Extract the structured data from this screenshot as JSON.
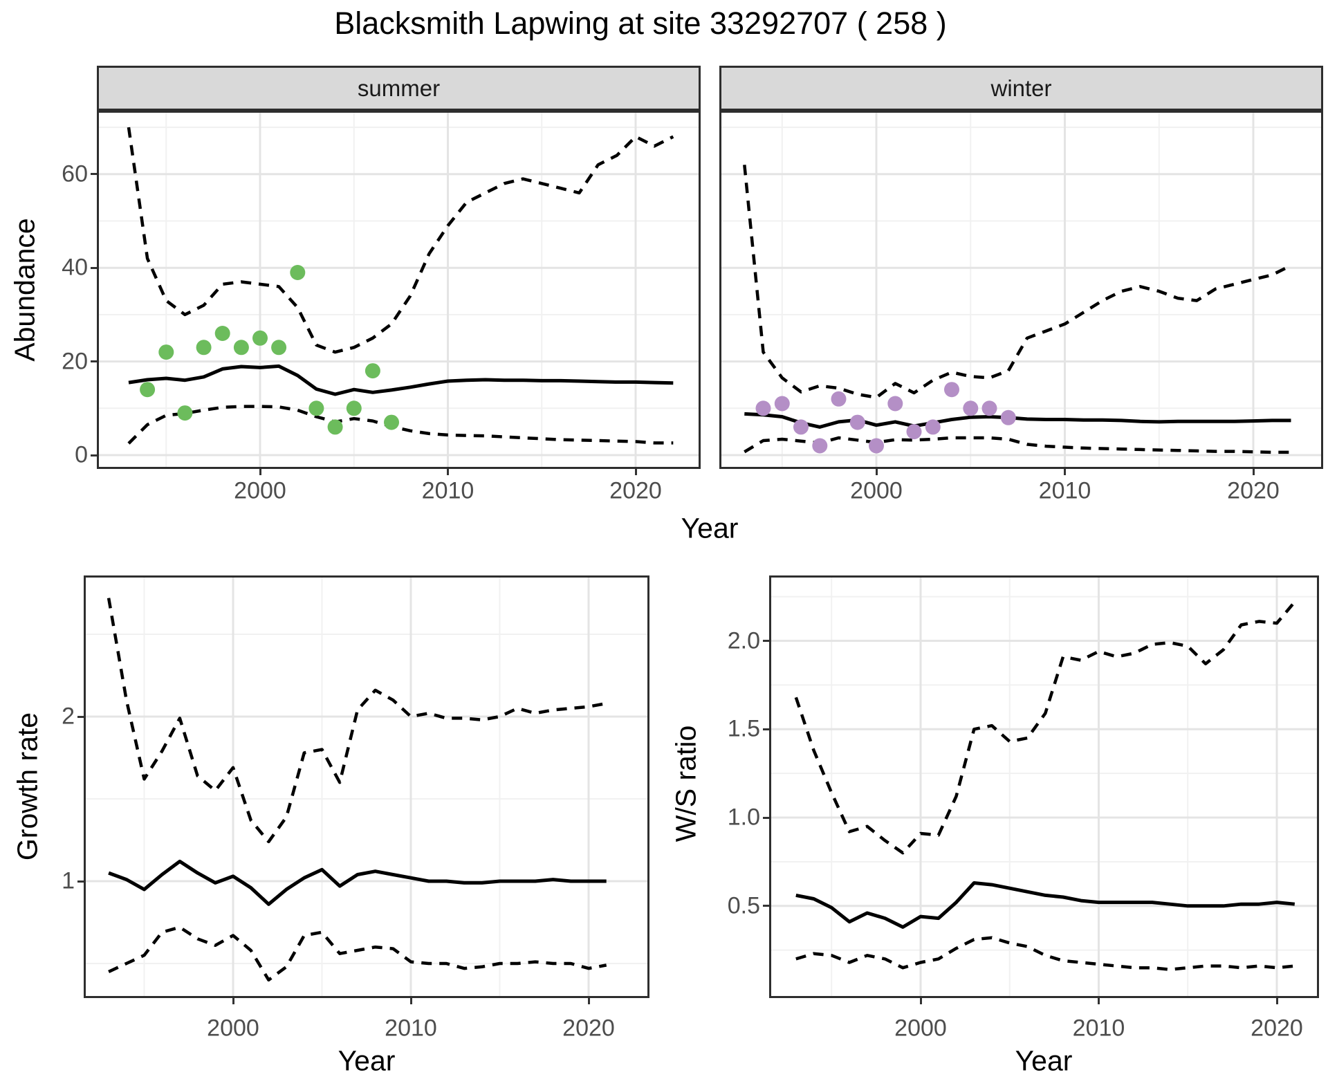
{
  "title": "Blacksmith Lapwing at site 33292707 ( 258 )",
  "facets": {
    "summer_label": "summer",
    "winter_label": "winter"
  },
  "axis_labels": {
    "abundance": "Abundance",
    "top_year": "Year",
    "growth_rate": "Growth rate",
    "growth_year": "Year",
    "ws_ratio": "W/S ratio",
    "ws_year": "Year"
  },
  "colors": {
    "summer_point": "#6cbc5c",
    "winter_point": "#b48fc6",
    "line": "#000000",
    "strip_bg": "#d9d9d9",
    "panel_border": "#2e2e2e",
    "grid_major": "#e4e4e4",
    "grid_minor": "#f1f1f1",
    "tick_text": "#4d4d4d"
  },
  "chart_data": [
    {
      "id": "abundance-summer",
      "type": "line",
      "facet": "summer",
      "xlabel": "Year",
      "ylabel": "Abundance",
      "xlim": [
        1991.4,
        2023.4
      ],
      "ylim": [
        -2.5,
        73
      ],
      "x_ticks": [
        2000,
        2010,
        2020
      ],
      "x_tick_labels": [
        "2000",
        "2010",
        "2020"
      ],
      "x_minor": [
        1995,
        2005,
        2015
      ],
      "y_ticks": [
        0,
        20,
        40,
        60
      ],
      "y_tick_labels": [
        "0",
        "20",
        "40",
        "60"
      ],
      "y_minor": [
        10,
        30,
        50,
        70
      ],
      "grid": true,
      "legend": "none",
      "years": [
        1993,
        1994,
        1995,
        1996,
        1997,
        1998,
        1999,
        2000,
        2001,
        2002,
        2003,
        2004,
        2005,
        2006,
        2007,
        2008,
        2009,
        2010,
        2011,
        2012,
        2013,
        2014,
        2015,
        2016,
        2017,
        2018,
        2019,
        2020,
        2021,
        2022
      ],
      "series": [
        {
          "name": "median",
          "style": "solid",
          "values": [
            15.5,
            16.1,
            16.4,
            16.0,
            16.7,
            18.4,
            18.9,
            18.7,
            19.0,
            17.0,
            14.1,
            13.0,
            14.0,
            13.4,
            13.9,
            14.5,
            15.2,
            15.8,
            16.0,
            16.1,
            16.0,
            16.0,
            15.9,
            15.9,
            15.8,
            15.7,
            15.6,
            15.6,
            15.5,
            15.4
          ]
        },
        {
          "name": "upper-95ci",
          "style": "dashed",
          "values": [
            70,
            42,
            33,
            30,
            32,
            36.5,
            37,
            36.5,
            36,
            31.5,
            23.5,
            22,
            23,
            25,
            28,
            34,
            43,
            49,
            54,
            56,
            58,
            59,
            58,
            57,
            56,
            62,
            64,
            68,
            66,
            68
          ]
        },
        {
          "name": "lower-95ci",
          "style": "dashed",
          "values": [
            2.5,
            6.5,
            8.5,
            8.9,
            9.6,
            10.2,
            10.4,
            10.4,
            10.3,
            9.6,
            8.2,
            7.1,
            7.8,
            7.3,
            6.1,
            5.2,
            4.6,
            4.3,
            4.2,
            4.1,
            3.9,
            3.7,
            3.5,
            3.3,
            3.2,
            3.1,
            3.0,
            2.9,
            2.6,
            2.6
          ]
        }
      ],
      "points": {
        "name": "observed-counts-summer",
        "color_key": "summer_point",
        "x": [
          1994,
          1995,
          1996,
          1997,
          1998,
          1999,
          2000,
          2001,
          2002,
          2003,
          2004,
          2005,
          2006,
          2007
        ],
        "y": [
          14,
          22,
          9,
          23,
          26,
          23,
          25,
          23,
          39,
          10,
          6,
          10,
          18,
          7
        ]
      }
    },
    {
      "id": "abundance-winter",
      "type": "line",
      "facet": "winter",
      "xlabel": "Year",
      "ylabel": "Abundance",
      "xlim": [
        1991.4,
        2023.4
      ],
      "ylim": [
        -2.5,
        73
      ],
      "x_ticks": [
        2000,
        2010,
        2020
      ],
      "x_tick_labels": [
        "2000",
        "2010",
        "2020"
      ],
      "x_minor": [
        1995,
        2005,
        2015
      ],
      "y_ticks": [
        0,
        20,
        40,
        60
      ],
      "y_tick_labels": [],
      "y_minor": [
        10,
        30,
        50,
        70
      ],
      "grid": true,
      "legend": "none",
      "years": [
        1993,
        1994,
        1995,
        1996,
        1997,
        1998,
        1999,
        2000,
        2001,
        2002,
        2003,
        2004,
        2005,
        2006,
        2007,
        2008,
        2009,
        2010,
        2011,
        2012,
        2013,
        2014,
        2015,
        2016,
        2017,
        2018,
        2019,
        2020,
        2021,
        2022
      ],
      "series": [
        {
          "name": "median",
          "style": "solid",
          "values": [
            8.8,
            8.6,
            8.2,
            6.9,
            6.0,
            7.1,
            7.5,
            6.4,
            7.1,
            6.2,
            6.9,
            7.6,
            8.1,
            8.2,
            8.0,
            7.7,
            7.6,
            7.6,
            7.5,
            7.5,
            7.4,
            7.2,
            7.1,
            7.2,
            7.2,
            7.2,
            7.2,
            7.3,
            7.4,
            7.4
          ]
        },
        {
          "name": "upper-95ci",
          "style": "dashed",
          "values": [
            62,
            22,
            16.5,
            13.5,
            14.8,
            14.3,
            13.0,
            12.3,
            15.3,
            13.3,
            16.0,
            17.7,
            16.8,
            16.5,
            18.0,
            25.0,
            26.5,
            28.0,
            30.5,
            33.0,
            35.0,
            36.0,
            35.0,
            33.5,
            33.0,
            35.5,
            36.5,
            37.5,
            38.5,
            40.5
          ]
        },
        {
          "name": "lower-95ci",
          "style": "dashed",
          "values": [
            0.7,
            3.1,
            3.4,
            3.0,
            2.6,
            3.7,
            3.2,
            2.7,
            3.3,
            3.2,
            3.4,
            3.7,
            3.7,
            3.7,
            3.4,
            2.3,
            1.9,
            1.7,
            1.5,
            1.4,
            1.3,
            1.2,
            1.1,
            1.0,
            0.9,
            0.8,
            0.8,
            0.7,
            0.6,
            0.6
          ]
        }
      ],
      "points": {
        "name": "observed-counts-winter",
        "color_key": "winter_point",
        "x": [
          1994,
          1995,
          1996,
          1997,
          1998,
          1999,
          2000,
          2001,
          2002,
          2003,
          2004,
          2005,
          2006,
          2007
        ],
        "y": [
          10,
          11,
          6,
          2,
          12,
          7,
          2,
          11,
          5,
          6,
          14,
          10,
          10,
          8
        ]
      }
    },
    {
      "id": "growth-rate",
      "type": "line",
      "facet": null,
      "xlabel": "Year",
      "ylabel": "Growth rate",
      "xlim": [
        1991.8,
        2023.3
      ],
      "ylim": [
        0.3,
        2.85
      ],
      "x_ticks": [
        2000,
        2010,
        2020
      ],
      "x_tick_labels": [
        "2000",
        "2010",
        "2020"
      ],
      "x_minor": [
        1995,
        2005,
        2015
      ],
      "y_ticks": [
        1,
        2
      ],
      "y_tick_labels": [
        "1",
        "2"
      ],
      "y_minor": [
        0.5,
        1.5,
        2.5
      ],
      "grid": true,
      "legend": "none",
      "years": [
        1993,
        1994,
        1995,
        1996,
        1997,
        1998,
        1999,
        2000,
        2001,
        2002,
        2003,
        2004,
        2005,
        2006,
        2007,
        2008,
        2009,
        2010,
        2011,
        2012,
        2013,
        2014,
        2015,
        2016,
        2017,
        2018,
        2019,
        2020,
        2021
      ],
      "series": [
        {
          "name": "median",
          "style": "solid",
          "values": [
            1.05,
            1.01,
            0.95,
            1.04,
            1.12,
            1.05,
            0.99,
            1.03,
            0.96,
            0.86,
            0.95,
            1.02,
            1.07,
            0.97,
            1.04,
            1.06,
            1.04,
            1.02,
            1.0,
            1.0,
            0.99,
            0.99,
            1.0,
            1.0,
            1.0,
            1.01,
            1.0,
            1.0,
            1.0
          ]
        },
        {
          "name": "upper-95ci",
          "style": "dashed",
          "values": [
            2.72,
            2.1,
            1.62,
            1.79,
            1.99,
            1.64,
            1.55,
            1.69,
            1.37,
            1.24,
            1.39,
            1.78,
            1.8,
            1.6,
            2.04,
            2.16,
            2.1,
            2.0,
            2.02,
            1.99,
            1.99,
            1.98,
            2.0,
            2.05,
            2.02,
            2.04,
            2.05,
            2.06,
            2.08
          ]
        },
        {
          "name": "lower-95ci",
          "style": "dashed",
          "values": [
            0.45,
            0.5,
            0.55,
            0.69,
            0.72,
            0.65,
            0.61,
            0.67,
            0.58,
            0.4,
            0.48,
            0.67,
            0.69,
            0.56,
            0.58,
            0.6,
            0.59,
            0.51,
            0.5,
            0.5,
            0.47,
            0.48,
            0.5,
            0.5,
            0.51,
            0.5,
            0.5,
            0.47,
            0.49
          ]
        }
      ],
      "points": null
    },
    {
      "id": "ws-ratio",
      "type": "line",
      "facet": null,
      "xlabel": "Year",
      "ylabel": "W/S ratio",
      "xlim": [
        1991.6,
        2023.2
      ],
      "ylim": [
        0.0,
        2.36
      ],
      "x_ticks": [
        2000,
        2010,
        2020
      ],
      "x_tick_labels": [
        "2000",
        "2010",
        "2020"
      ],
      "x_minor": [
        1995,
        2005,
        2015
      ],
      "y_ticks": [
        0.5,
        1.0,
        1.5,
        2.0
      ],
      "y_tick_labels": [
        "0.5",
        "1.0",
        "1.5",
        "2.0"
      ],
      "y_minor": [
        0.25,
        0.75,
        1.25,
        1.75,
        2.25
      ],
      "grid": true,
      "legend": "none",
      "years": [
        1993,
        1994,
        1995,
        1996,
        1997,
        1998,
        1999,
        2000,
        2001,
        2002,
        2003,
        2004,
        2005,
        2006,
        2007,
        2008,
        2009,
        2010,
        2011,
        2012,
        2013,
        2014,
        2015,
        2016,
        2017,
        2018,
        2019,
        2020,
        2021
      ],
      "series": [
        {
          "name": "median",
          "style": "solid",
          "values": [
            0.56,
            0.54,
            0.49,
            0.41,
            0.46,
            0.43,
            0.38,
            0.44,
            0.43,
            0.52,
            0.63,
            0.62,
            0.6,
            0.58,
            0.56,
            0.55,
            0.53,
            0.52,
            0.52,
            0.52,
            0.52,
            0.51,
            0.5,
            0.5,
            0.5,
            0.51,
            0.51,
            0.52,
            0.51
          ]
        },
        {
          "name": "upper-95ci",
          "style": "dashed",
          "values": [
            1.68,
            1.38,
            1.14,
            0.92,
            0.95,
            0.87,
            0.8,
            0.91,
            0.9,
            1.12,
            1.5,
            1.52,
            1.43,
            1.45,
            1.59,
            1.91,
            1.89,
            1.94,
            1.91,
            1.93,
            1.98,
            1.99,
            1.97,
            1.87,
            1.95,
            2.09,
            2.11,
            2.1,
            2.22
          ]
        },
        {
          "name": "lower-95ci",
          "style": "dashed",
          "values": [
            0.2,
            0.23,
            0.22,
            0.18,
            0.22,
            0.2,
            0.15,
            0.18,
            0.2,
            0.26,
            0.31,
            0.32,
            0.29,
            0.27,
            0.22,
            0.19,
            0.18,
            0.17,
            0.16,
            0.15,
            0.15,
            0.14,
            0.15,
            0.16,
            0.16,
            0.15,
            0.16,
            0.15,
            0.16
          ]
        }
      ],
      "points": null
    }
  ]
}
